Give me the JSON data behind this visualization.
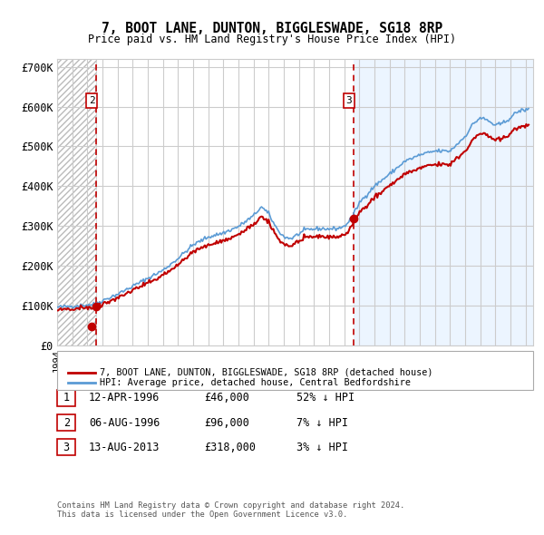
{
  "title": "7, BOOT LANE, DUNTON, BIGGLESWADE, SG18 8RP",
  "subtitle": "Price paid vs. HM Land Registry's House Price Index (HPI)",
  "xlim": [
    1994.0,
    2025.5
  ],
  "ylim": [
    0,
    720000
  ],
  "yticks": [
    0,
    100000,
    200000,
    300000,
    400000,
    500000,
    600000,
    700000
  ],
  "ytick_labels": [
    "£0",
    "£100K",
    "£200K",
    "£300K",
    "£400K",
    "£500K",
    "£600K",
    "£700K"
  ],
  "sale_dates": [
    1996.278,
    1996.597,
    2013.617
  ],
  "sale_prices": [
    46000,
    96000,
    318000
  ],
  "vline_dates": [
    1996.597,
    2013.617
  ],
  "hpi_color": "#5b9bd5",
  "sale_color": "#c00000",
  "hatch_region_end": 1996.597,
  "highlight_region_start": 2013.617,
  "highlight_region_end": 2025.5,
  "legend_entries": [
    "7, BOOT LANE, DUNTON, BIGGLESWADE, SG18 8RP (detached house)",
    "HPI: Average price, detached house, Central Bedfordshire"
  ],
  "table_rows": [
    [
      "1",
      "12-APR-1996",
      "£46,000",
      "52% ↓ HPI"
    ],
    [
      "2",
      "06-AUG-1996",
      "£96,000",
      "7% ↓ HPI"
    ],
    [
      "3",
      "13-AUG-2013",
      "£318,000",
      "3% ↓ HPI"
    ]
  ],
  "footnote": "Contains HM Land Registry data © Crown copyright and database right 2024.\nThis data is licensed under the Open Government Licence v3.0.",
  "background_color": "#ffffff",
  "plot_bg_color": "#ffffff",
  "grid_color": "#cccccc",
  "hpi_anchor_years": [
    1994.0,
    1995.0,
    1996.0,
    1996.5,
    1997.0,
    1998.0,
    1999.0,
    2000.0,
    2001.0,
    2002.0,
    2003.0,
    2004.0,
    2005.0,
    2006.0,
    2007.0,
    2007.5,
    2008.0,
    2008.5,
    2009.0,
    2009.5,
    2010.0,
    2010.5,
    2011.0,
    2011.5,
    2012.0,
    2012.5,
    2013.0,
    2013.5,
    2014.0,
    2015.0,
    2016.0,
    2017.0,
    2018.0,
    2019.0,
    2020.0,
    2021.0,
    2021.5,
    2022.0,
    2022.5,
    2023.0,
    2023.5,
    2024.0,
    2024.5,
    2025.0
  ],
  "hpi_anchor_vals": [
    95000,
    98000,
    101000,
    103000,
    112000,
    128000,
    148000,
    168000,
    188000,
    218000,
    252000,
    272000,
    282000,
    298000,
    325000,
    348000,
    330000,
    295000,
    272000,
    268000,
    280000,
    290000,
    292000,
    293000,
    292000,
    293000,
    298000,
    320000,
    358000,
    400000,
    430000,
    462000,
    478000,
    488000,
    488000,
    525000,
    555000,
    572000,
    565000,
    552000,
    558000,
    572000,
    588000,
    592000
  ]
}
